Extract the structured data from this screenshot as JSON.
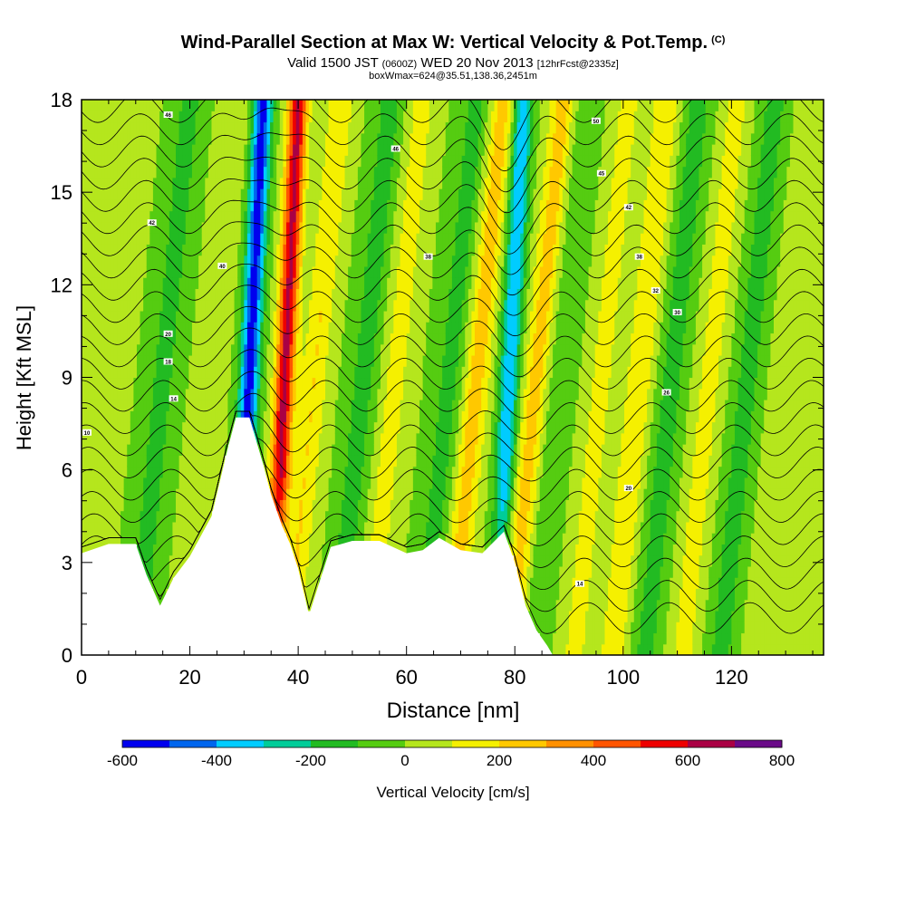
{
  "title": {
    "main": "Wind-Parallel Section at Max W: Vertical Velocity & Pot.Temp.",
    "copyright": "(C)",
    "valid": "Valid 1500 JST",
    "zulu": "(0600Z)",
    "date": "WED 20 Nov 2013",
    "forecast": "[12hrFcst@2335z]",
    "boxinfo": "boxWmax=624@35.51,138.36,2451m"
  },
  "chart_data": {
    "type": "heatmap",
    "xlabel": "Distance [nm]",
    "ylabel": "Height [Kft MSL]",
    "xlim": [
      0,
      137
    ],
    "ylim": [
      0,
      18
    ],
    "x_ticks": [
      0,
      20,
      40,
      60,
      80,
      100,
      120
    ],
    "y_ticks": [
      0,
      3,
      6,
      9,
      12,
      15,
      18
    ],
    "colorbar": {
      "label": "Vertical Velocity [cm/s]",
      "levels": [
        -600,
        -500,
        -400,
        -300,
        -200,
        -100,
        0,
        100,
        200,
        300,
        400,
        500,
        600,
        700,
        800
      ],
      "tick_labels": [
        "-600",
        "-400",
        "-200",
        "0",
        "200",
        "400",
        "600",
        "800"
      ],
      "colors": [
        "#0000ee",
        "#0066ee",
        "#00ccff",
        "#00cc99",
        "#22bb22",
        "#55cc11",
        "#b5e61d",
        "#f5f000",
        "#ffc800",
        "#ff9000",
        "#ff5500",
        "#ee0000",
        "#aa0044",
        "#6a0a88"
      ]
    },
    "terrain": [
      {
        "x": 0,
        "y": 3.3
      },
      {
        "x": 5,
        "y": 3.6
      },
      {
        "x": 10,
        "y": 3.6
      },
      {
        "x": 12,
        "y": 2.6
      },
      {
        "x": 14.5,
        "y": 1.6
      },
      {
        "x": 17,
        "y": 2.5
      },
      {
        "x": 20,
        "y": 3.2
      },
      {
        "x": 24,
        "y": 4.5
      },
      {
        "x": 27,
        "y": 6.7
      },
      {
        "x": 28.5,
        "y": 7.7
      },
      {
        "x": 31,
        "y": 7.7
      },
      {
        "x": 33.5,
        "y": 6.2
      },
      {
        "x": 35,
        "y": 5.2
      },
      {
        "x": 37,
        "y": 4.2
      },
      {
        "x": 38.5,
        "y": 3.6
      },
      {
        "x": 40,
        "y": 2.8
      },
      {
        "x": 42,
        "y": 1.3
      },
      {
        "x": 44,
        "y": 2.4
      },
      {
        "x": 46,
        "y": 3.5
      },
      {
        "x": 50,
        "y": 3.7
      },
      {
        "x": 55,
        "y": 3.7
      },
      {
        "x": 60,
        "y": 3.3
      },
      {
        "x": 63,
        "y": 3.4
      },
      {
        "x": 66,
        "y": 3.8
      },
      {
        "x": 70,
        "y": 3.4
      },
      {
        "x": 74,
        "y": 3.3
      },
      {
        "x": 78,
        "y": 4.0
      },
      {
        "x": 80,
        "y": 3.0
      },
      {
        "x": 82,
        "y": 1.6
      },
      {
        "x": 84,
        "y": 0.8
      },
      {
        "x": 86,
        "y": 0.3
      },
      {
        "x": 87,
        "y": 0
      },
      {
        "x": 137,
        "y": 0
      }
    ],
    "vertical_velocity_features": [
      {
        "x": 5,
        "value": 100
      },
      {
        "x": 15,
        "value": -150
      },
      {
        "x": 24,
        "value": 100
      },
      {
        "x": 31,
        "value": -550
      },
      {
        "x": 37.5,
        "value": 624
      },
      {
        "x": 43,
        "value": 200
      },
      {
        "x": 52,
        "value": -150
      },
      {
        "x": 58,
        "value": 150
      },
      {
        "x": 68,
        "value": -150
      },
      {
        "x": 73,
        "value": 250
      },
      {
        "x": 79,
        "value": -400
      },
      {
        "x": 84,
        "value": 250
      },
      {
        "x": 88,
        "value": -100
      },
      {
        "x": 96,
        "value": 150
      },
      {
        "x": 103,
        "value": 200
      },
      {
        "x": 109,
        "value": -150
      },
      {
        "x": 116,
        "value": 150
      },
      {
        "x": 123,
        "value": -150
      },
      {
        "x": 130,
        "value": 100
      }
    ],
    "potential_temperature_contours": [
      {
        "x": 16,
        "y": 17.5,
        "label": "46"
      },
      {
        "x": 13,
        "y": 14.0,
        "label": "42"
      },
      {
        "x": 26,
        "y": 12.6,
        "label": "40"
      },
      {
        "x": 16,
        "y": 10.4,
        "label": "20"
      },
      {
        "x": 16,
        "y": 9.5,
        "label": "18"
      },
      {
        "x": 17,
        "y": 8.3,
        "label": "14"
      },
      {
        "x": 1,
        "y": 7.2,
        "label": "10"
      },
      {
        "x": 58,
        "y": 16.4,
        "label": "46"
      },
      {
        "x": 64,
        "y": 12.9,
        "label": "38"
      },
      {
        "x": 95,
        "y": 17.3,
        "label": "50"
      },
      {
        "x": 96,
        "y": 15.6,
        "label": "45"
      },
      {
        "x": 101,
        "y": 14.5,
        "label": "42"
      },
      {
        "x": 103,
        "y": 12.9,
        "label": "38"
      },
      {
        "x": 106,
        "y": 11.8,
        "label": "32"
      },
      {
        "x": 110,
        "y": 11.1,
        "label": "30"
      },
      {
        "x": 108,
        "y": 8.5,
        "label": "26"
      },
      {
        "x": 101,
        "y": 5.4,
        "label": "20"
      },
      {
        "x": 92,
        "y": 2.3,
        "label": "14"
      }
    ]
  }
}
